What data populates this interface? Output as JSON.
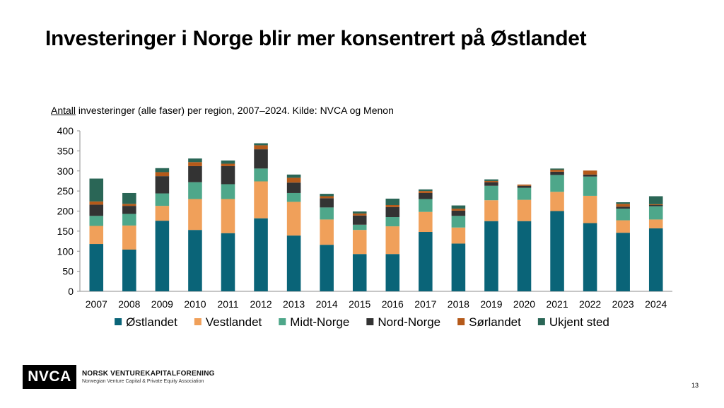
{
  "slide": {
    "title": "Investeringer i Norge blir mer konsentrert på Østlandet",
    "subtitle_underlined": "Antall",
    "subtitle_rest": " investeringer (alle faser) per region, 2007–2024. Kilde: NVCA og Menon",
    "page_number": "13"
  },
  "footer": {
    "logo_text": "NVCA",
    "org_name": "NORSK VENTUREKAPITALFORENING",
    "org_subtitle": "Norwegian Venture Capital & Private Equity Association"
  },
  "chart_data": {
    "type": "bar",
    "stacked": true,
    "categories": [
      "2007",
      "2008",
      "2009",
      "2010",
      "2011",
      "2012",
      "2013",
      "2014",
      "2015",
      "2016",
      "2017",
      "2018",
      "2019",
      "2020",
      "2021",
      "2022",
      "2023",
      "2024"
    ],
    "series": [
      {
        "name": "Østlandet",
        "color": "#0a6478",
        "values": [
          118,
          104,
          176,
          153,
          145,
          182,
          139,
          116,
          93,
          93,
          148,
          119,
          175,
          175,
          200,
          170,
          146,
          157
        ]
      },
      {
        "name": "Vestlandet",
        "color": "#f0a05a",
        "values": [
          45,
          60,
          37,
          77,
          85,
          92,
          84,
          63,
          60,
          69,
          50,
          40,
          52,
          53,
          48,
          68,
          31,
          22
        ]
      },
      {
        "name": "Midt-Norge",
        "color": "#4ea78a",
        "values": [
          25,
          29,
          31,
          42,
          37,
          32,
          22,
          30,
          13,
          23,
          32,
          29,
          36,
          30,
          42,
          48,
          29,
          33
        ]
      },
      {
        "name": "Nord-Norge",
        "color": "#333333",
        "values": [
          28,
          20,
          43,
          40,
          45,
          48,
          26,
          23,
          23,
          25,
          15,
          13,
          9,
          5,
          8,
          5,
          5,
          3
        ]
      },
      {
        "name": "Sørlandet",
        "color": "#b55a1a",
        "values": [
          8,
          5,
          10,
          10,
          6,
          10,
          12,
          5,
          5,
          5,
          5,
          5,
          3,
          3,
          5,
          10,
          7,
          2
        ]
      },
      {
        "name": "Ukjent sted",
        "color": "#2a6656",
        "values": [
          57,
          27,
          10,
          9,
          8,
          5,
          8,
          6,
          5,
          16,
          4,
          8,
          4,
          0,
          3,
          0,
          4,
          20
        ]
      }
    ],
    "ylim": [
      0,
      400
    ],
    "yticks": [
      0,
      50,
      100,
      150,
      200,
      250,
      300,
      350,
      400
    ],
    "grid": false,
    "legend_position": "bottom"
  }
}
